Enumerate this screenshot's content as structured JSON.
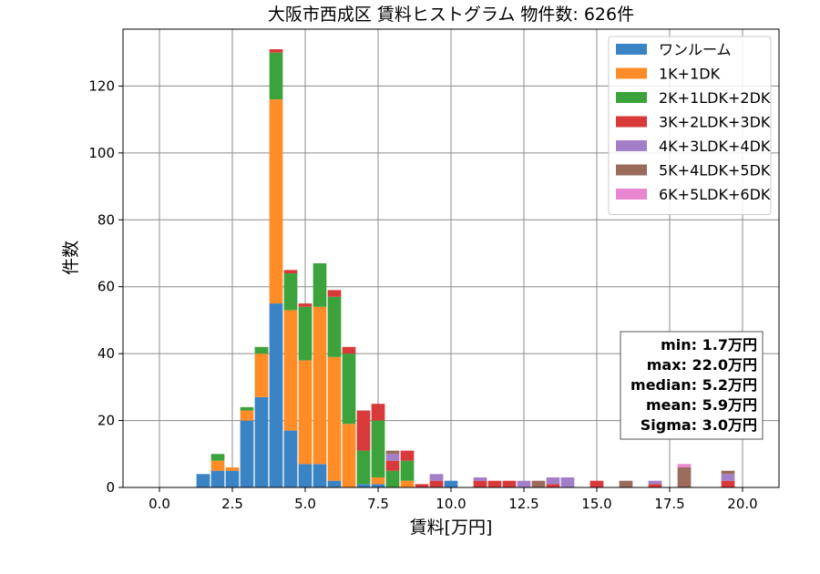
{
  "chart_data": {
    "type": "bar",
    "stacked": true,
    "title": "大阪市西成区 賃料ヒストグラム 物件数: 626件",
    "xlabel": "賃料[万円]",
    "ylabel": "件数",
    "xlim": [
      -1.25,
      21.25
    ],
    "ylim": [
      0,
      137
    ],
    "grid": true,
    "legend_position": "top-right",
    "bin_width": 0.5,
    "x_ticks": [
      0,
      2.5,
      5,
      7.5,
      10,
      12.5,
      15,
      17.5,
      20
    ],
    "x_tick_labels": [
      "0.0",
      "2.5",
      "5.0",
      "7.5",
      "10.0",
      "12.5",
      "15.0",
      "17.5",
      "20.0"
    ],
    "y_ticks": [
      0,
      20,
      40,
      60,
      80,
      100,
      120
    ],
    "y_tick_labels": [
      "0",
      "20",
      "40",
      "60",
      "80",
      "100",
      "120"
    ],
    "x": [
      1.5,
      2.0,
      2.5,
      3.0,
      3.5,
      4.0,
      4.5,
      5.0,
      5.5,
      6.0,
      6.5,
      7.0,
      7.5,
      8.0,
      8.5,
      9.0,
      9.5,
      10.0,
      11.0,
      11.5,
      12.0,
      12.5,
      13.0,
      13.5,
      14.0,
      15.0,
      16.0,
      17.0,
      18.0,
      19.5
    ],
    "series": [
      {
        "name": "ワンルーム",
        "color": "#3a83c4",
        "values": [
          4,
          5,
          5,
          20,
          27,
          55,
          17,
          7,
          7,
          2,
          0,
          1,
          1,
          0,
          0,
          0,
          0,
          2,
          0,
          0,
          0,
          0,
          0,
          0,
          0,
          0,
          0,
          0,
          0,
          0
        ]
      },
      {
        "name": "1K+1DK",
        "color": "#ff8c26",
        "values": [
          0,
          3,
          1,
          3,
          13,
          61,
          36,
          31,
          47,
          37,
          19,
          0,
          2,
          0,
          2,
          0,
          0,
          0,
          0,
          0,
          0,
          0,
          0,
          0,
          0,
          0,
          0,
          0,
          0,
          0
        ]
      },
      {
        "name": "2K+1LDK+2DK",
        "color": "#3ca33c",
        "values": [
          0,
          2,
          0,
          1,
          2,
          14,
          11,
          16,
          13,
          18,
          21,
          10,
          17,
          5,
          6,
          0,
          0,
          0,
          0,
          0,
          0,
          0,
          0,
          0,
          0,
          0,
          0,
          0,
          0,
          0
        ]
      },
      {
        "name": "3K+2LDK+3DK",
        "color": "#d83a3a",
        "values": [
          0,
          0,
          0,
          0,
          0,
          1,
          1,
          1,
          0,
          2,
          2,
          12,
          5,
          3,
          3,
          1,
          2,
          0,
          2,
          2,
          2,
          0,
          0,
          1,
          0,
          2,
          0,
          1,
          0,
          2
        ]
      },
      {
        "name": "4K+3LDK+4DK",
        "color": "#a37fc9",
        "values": [
          0,
          0,
          0,
          0,
          0,
          0,
          0,
          0,
          0,
          0,
          0,
          0,
          0,
          2,
          0,
          0,
          2,
          0,
          1,
          0,
          0,
          2,
          0,
          2,
          3,
          0,
          0,
          1,
          0,
          2
        ]
      },
      {
        "name": "5K+4LDK+5DK",
        "color": "#9b6b5c",
        "values": [
          0,
          0,
          0,
          0,
          0,
          0,
          0,
          0,
          0,
          0,
          0,
          0,
          0,
          1,
          0,
          0,
          0,
          0,
          0,
          0,
          0,
          0,
          2,
          0,
          0,
          0,
          2,
          0,
          6,
          1
        ]
      },
      {
        "name": "6K+5LDK+6DK",
        "color": "#e887cf",
        "values": [
          0,
          0,
          0,
          0,
          0,
          0,
          0,
          0,
          0,
          0,
          0,
          0,
          0,
          0,
          0,
          0,
          0,
          0,
          0,
          0,
          0,
          0,
          0,
          0,
          0,
          0,
          0,
          0,
          1,
          0
        ]
      }
    ],
    "stats": [
      "min: 1.7万円",
      "max: 22.0万円",
      "median: 5.2万円",
      "mean: 5.9万円",
      "Sigma: 3.0万円"
    ]
  }
}
